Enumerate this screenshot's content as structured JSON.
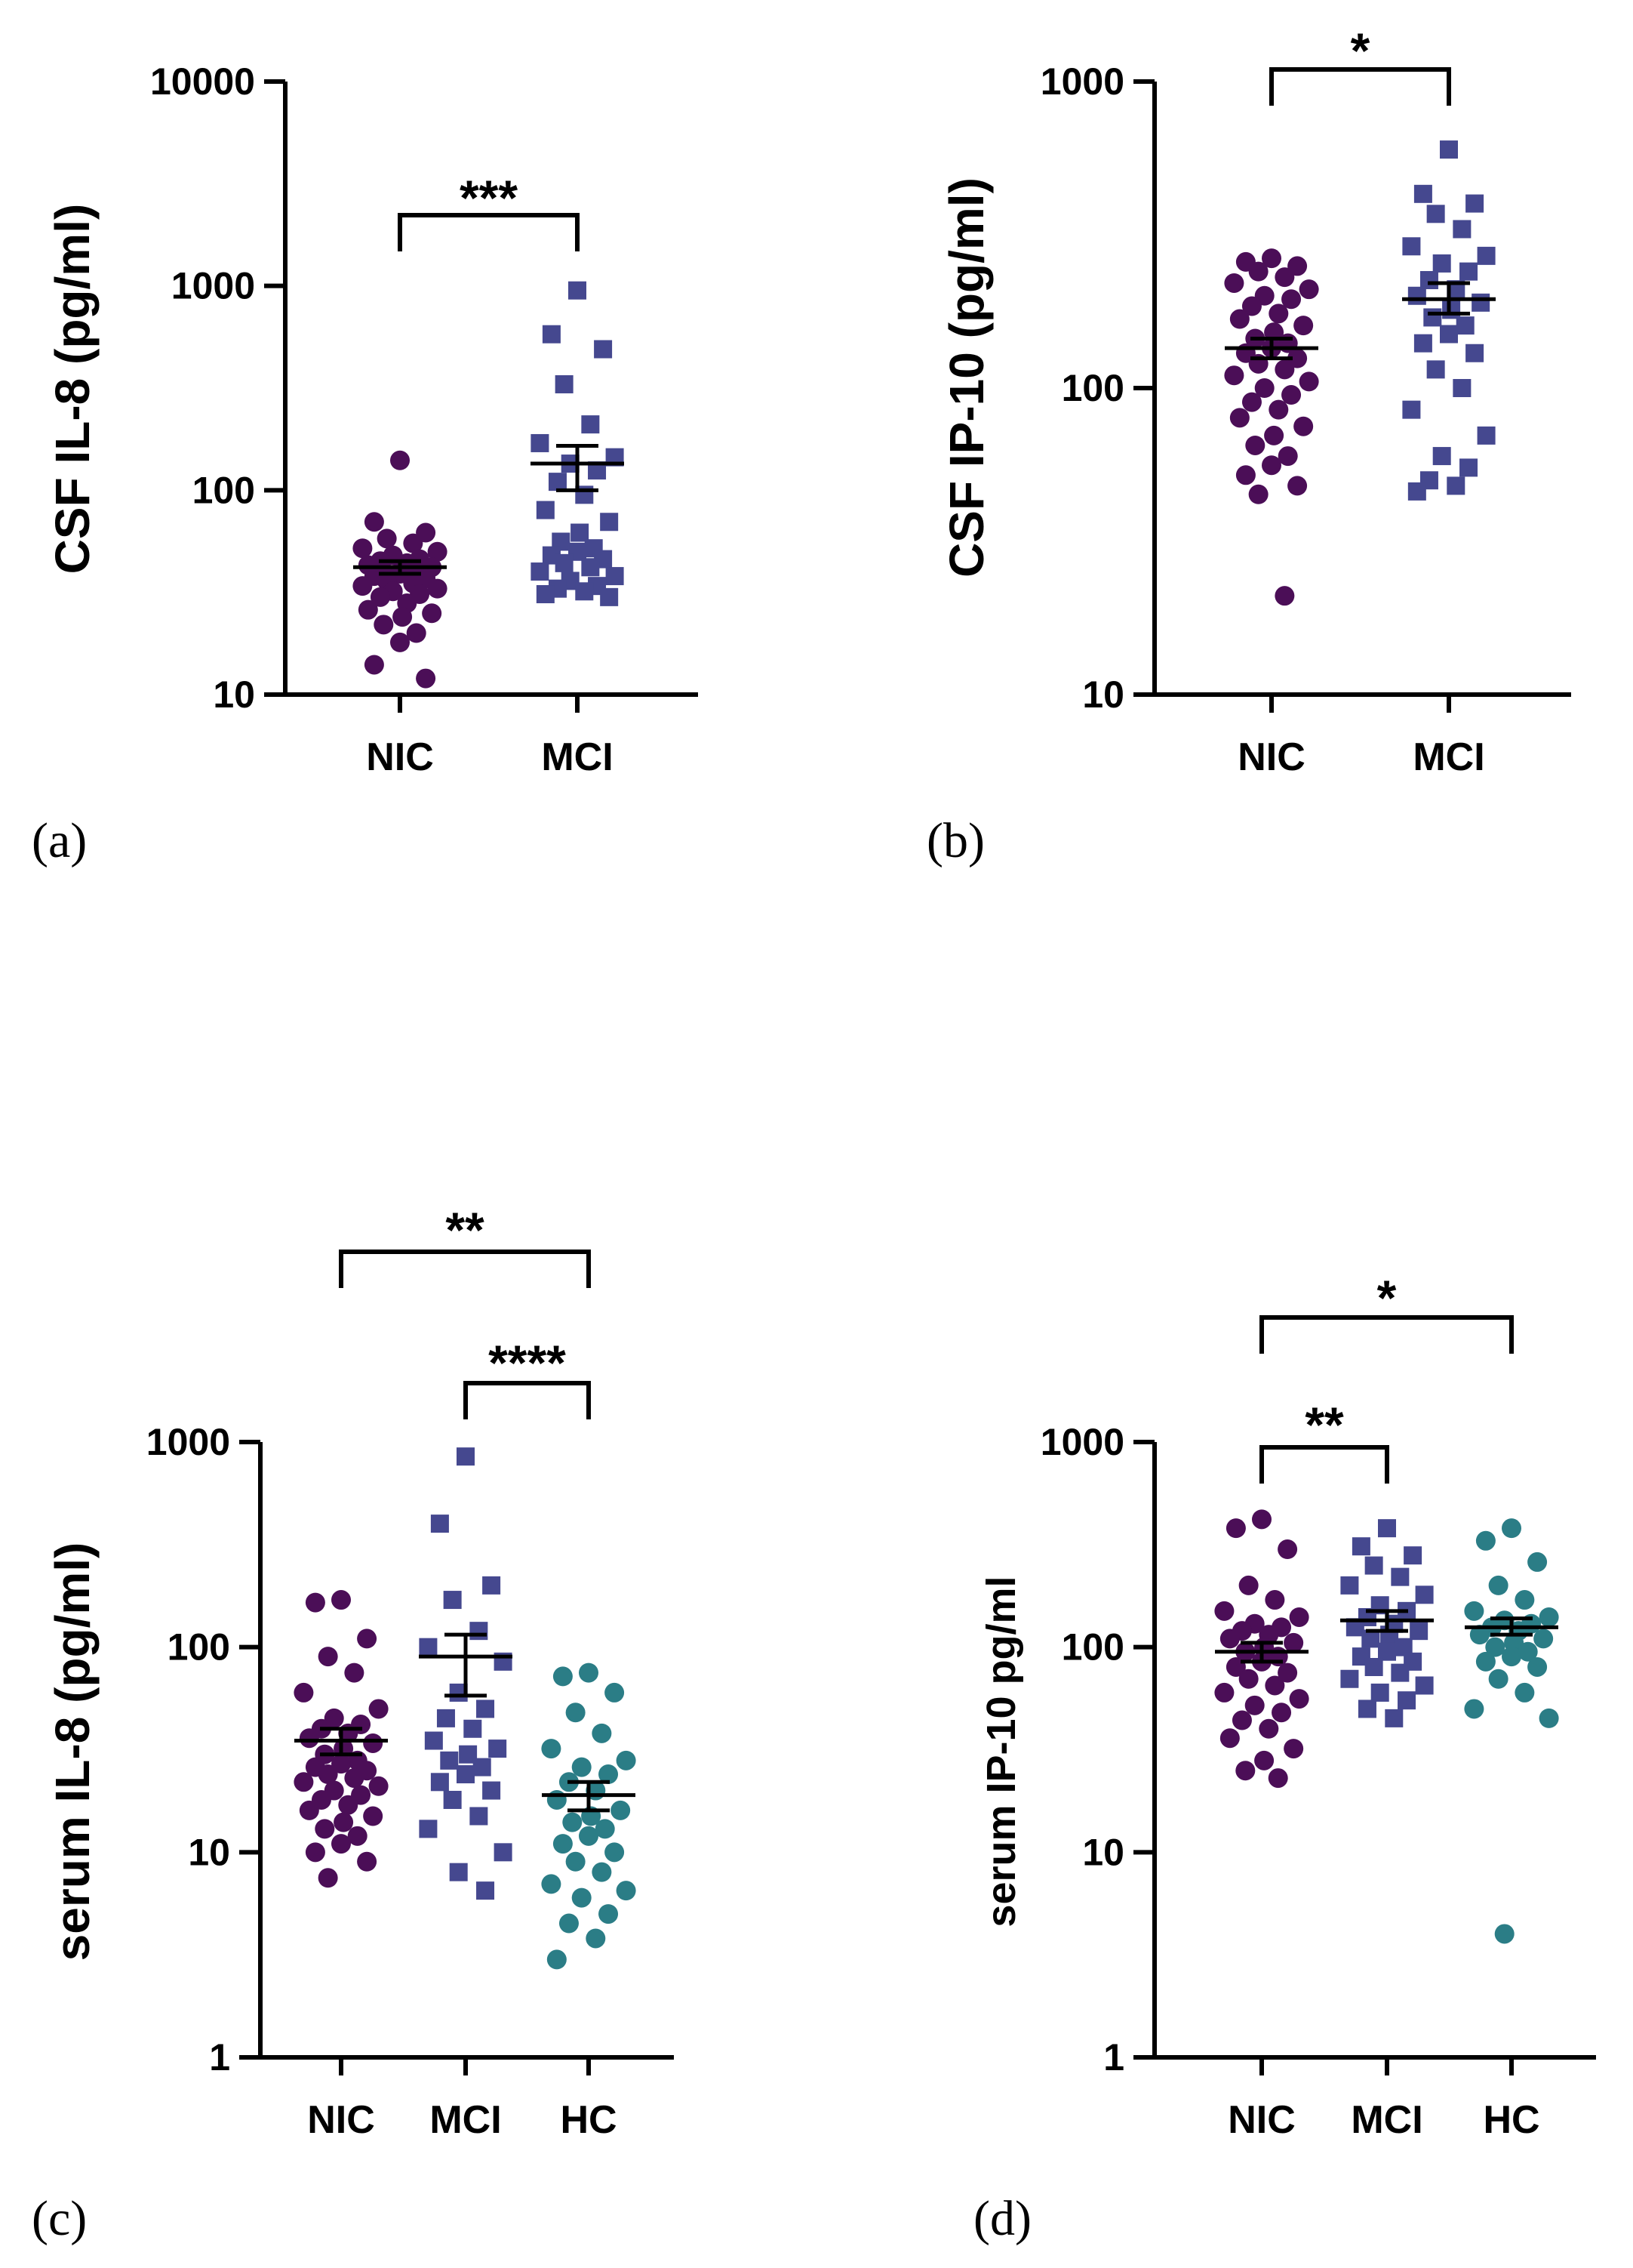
{
  "colors": {
    "NIC": "#4b0e57",
    "MCI": "#45488f",
    "HC": "#2b7d86"
  },
  "chart_data": [
    {
      "type": "scatter",
      "panel_label": "(a)",
      "ylabel": "CSF IL-8 (pg/ml)",
      "yscale": "log",
      "ylim": [
        10,
        10000
      ],
      "yticks": [
        10,
        100,
        1000,
        10000
      ],
      "ytick_labels": [
        "10",
        "100",
        "1000",
        "10000"
      ],
      "categories": [
        "NIC",
        "MCI"
      ],
      "series": [
        {
          "category": "NIC",
          "marker": "circle",
          "values": [
            140,
            70,
            62,
            58,
            55,
            52,
            50,
            48,
            46,
            45,
            44,
            43,
            42,
            41,
            40,
            40,
            39,
            38,
            37,
            36,
            35,
            34,
            33,
            32,
            31,
            30,
            28,
            26,
            25,
            24,
            22,
            20,
            18,
            14,
            12
          ],
          "mean": 42,
          "sem": [
            39,
            45
          ]
        },
        {
          "category": "MCI",
          "marker": "square",
          "values": [
            950,
            580,
            490,
            330,
            210,
            170,
            145,
            135,
            125,
            110,
            95,
            80,
            70,
            62,
            56,
            52,
            50,
            48,
            46,
            44,
            42,
            40,
            38,
            36,
            34,
            33,
            32,
            31,
            30
          ],
          "mean": 135,
          "sem": [
            100,
            165
          ]
        }
      ],
      "annotations": [
        {
          "from": "NIC",
          "to": "MCI",
          "text": "***"
        }
      ]
    },
    {
      "type": "scatter",
      "panel_label": "(b)",
      "ylabel": "CSF IP-10 (pg/ml)",
      "yscale": "log",
      "ylim": [
        10,
        1000
      ],
      "yticks": [
        10,
        100,
        1000
      ],
      "ytick_labels": [
        "10",
        "100",
        "1000"
      ],
      "categories": [
        "NIC",
        "MCI"
      ],
      "series": [
        {
          "category": "NIC",
          "marker": "circle",
          "values": [
            265,
            258,
            250,
            240,
            230,
            220,
            210,
            200,
            195,
            185,
            175,
            168,
            160,
            152,
            145,
            140,
            135,
            130,
            125,
            120,
            115,
            110,
            105,
            100,
            95,
            90,
            85,
            80,
            75,
            70,
            65,
            60,
            56,
            52,
            48,
            45,
            21
          ],
          "mean": 135,
          "sem": [
            125,
            145
          ]
        },
        {
          "category": "MCI",
          "marker": "square",
          "values": [
            600,
            430,
            400,
            370,
            330,
            290,
            270,
            255,
            240,
            225,
            210,
            200,
            190,
            180,
            170,
            160,
            150,
            140,
            130,
            115,
            100,
            85,
            70,
            60,
            55,
            50,
            48,
            46
          ],
          "mean": 195,
          "sem": [
            175,
            220
          ]
        }
      ],
      "annotations": [
        {
          "from": "NIC",
          "to": "MCI",
          "text": "*"
        }
      ]
    },
    {
      "type": "scatter",
      "panel_label": "(c)",
      "ylabel": "serum IL-8 (pg/ml)",
      "yscale": "log",
      "ylim": [
        1,
        1000
      ],
      "yticks": [
        1,
        10,
        100,
        1000
      ],
      "ytick_labels": [
        "1",
        "10",
        "100",
        "1000"
      ],
      "categories": [
        "NIC",
        "MCI",
        "HC"
      ],
      "series": [
        {
          "category": "NIC",
          "marker": "circle",
          "values": [
            170,
            165,
            110,
            90,
            75,
            60,
            50,
            45,
            42,
            40,
            38,
            36,
            34,
            32,
            30,
            28,
            27,
            26,
            25,
            24,
            23,
            22,
            21,
            20,
            19,
            18,
            17,
            16,
            15,
            14,
            13,
            12,
            11,
            10,
            9,
            7.5
          ],
          "mean": 35,
          "sem": [
            30,
            40
          ]
        },
        {
          "category": "MCI",
          "marker": "square",
          "values": [
            850,
            400,
            200,
            170,
            120,
            100,
            85,
            60,
            50,
            45,
            40,
            35,
            32,
            30,
            28,
            26,
            24,
            22,
            20,
            18,
            15,
            13,
            10,
            8,
            6.5
          ],
          "mean": 90,
          "sem": [
            58,
            115
          ]
        },
        {
          "category": "HC",
          "marker": "circle",
          "values": [
            75,
            72,
            60,
            48,
            38,
            32,
            28,
            26,
            24,
            22,
            20,
            18,
            16,
            15,
            14,
            13,
            12,
            11,
            10,
            9,
            8,
            7,
            6.5,
            6,
            5,
            4.5,
            3.8,
            3
          ],
          "mean": 19,
          "sem": [
            16,
            22
          ]
        }
      ],
      "annotations": [
        {
          "from": "NIC",
          "to": "HC",
          "text": "**"
        },
        {
          "from": "MCI",
          "to": "HC",
          "text": "****"
        }
      ]
    },
    {
      "type": "scatter",
      "panel_label": "(d)",
      "ylabel": "serum IP-10 pg/ml",
      "yscale": "log",
      "ylim": [
        1,
        1000
      ],
      "yticks": [
        1,
        10,
        100,
        1000
      ],
      "ytick_labels": [
        "1",
        "10",
        "100",
        "1000"
      ],
      "categories": [
        "NIC",
        "MCI",
        "HC"
      ],
      "series": [
        {
          "category": "NIC",
          "marker": "circle",
          "values": [
            420,
            380,
            300,
            200,
            170,
            150,
            140,
            130,
            125,
            120,
            115,
            110,
            105,
            100,
            95,
            90,
            85,
            80,
            75,
            70,
            65,
            60,
            56,
            52,
            48,
            44,
            40,
            36,
            32,
            28,
            25,
            23
          ],
          "mean": 95,
          "sem": [
            85,
            105
          ]
        },
        {
          "category": "MCI",
          "marker": "square",
          "values": [
            380,
            310,
            280,
            250,
            220,
            200,
            180,
            160,
            150,
            140,
            130,
            125,
            120,
            115,
            110,
            100,
            95,
            90,
            85,
            80,
            75,
            70,
            65,
            60,
            55,
            50,
            45
          ],
          "mean": 135,
          "sem": [
            120,
            150
          ]
        },
        {
          "category": "HC",
          "marker": "circle",
          "values": [
            380,
            330,
            260,
            200,
            170,
            150,
            140,
            135,
            130,
            125,
            120,
            115,
            110,
            105,
            100,
            95,
            90,
            85,
            80,
            70,
            60,
            50,
            45,
            4
          ],
          "mean": 125,
          "sem": [
            115,
            138
          ]
        }
      ],
      "annotations": [
        {
          "from": "NIC",
          "to": "MCI",
          "text": "**"
        },
        {
          "from": "NIC",
          "to": "HC",
          "text": "*"
        }
      ]
    }
  ]
}
